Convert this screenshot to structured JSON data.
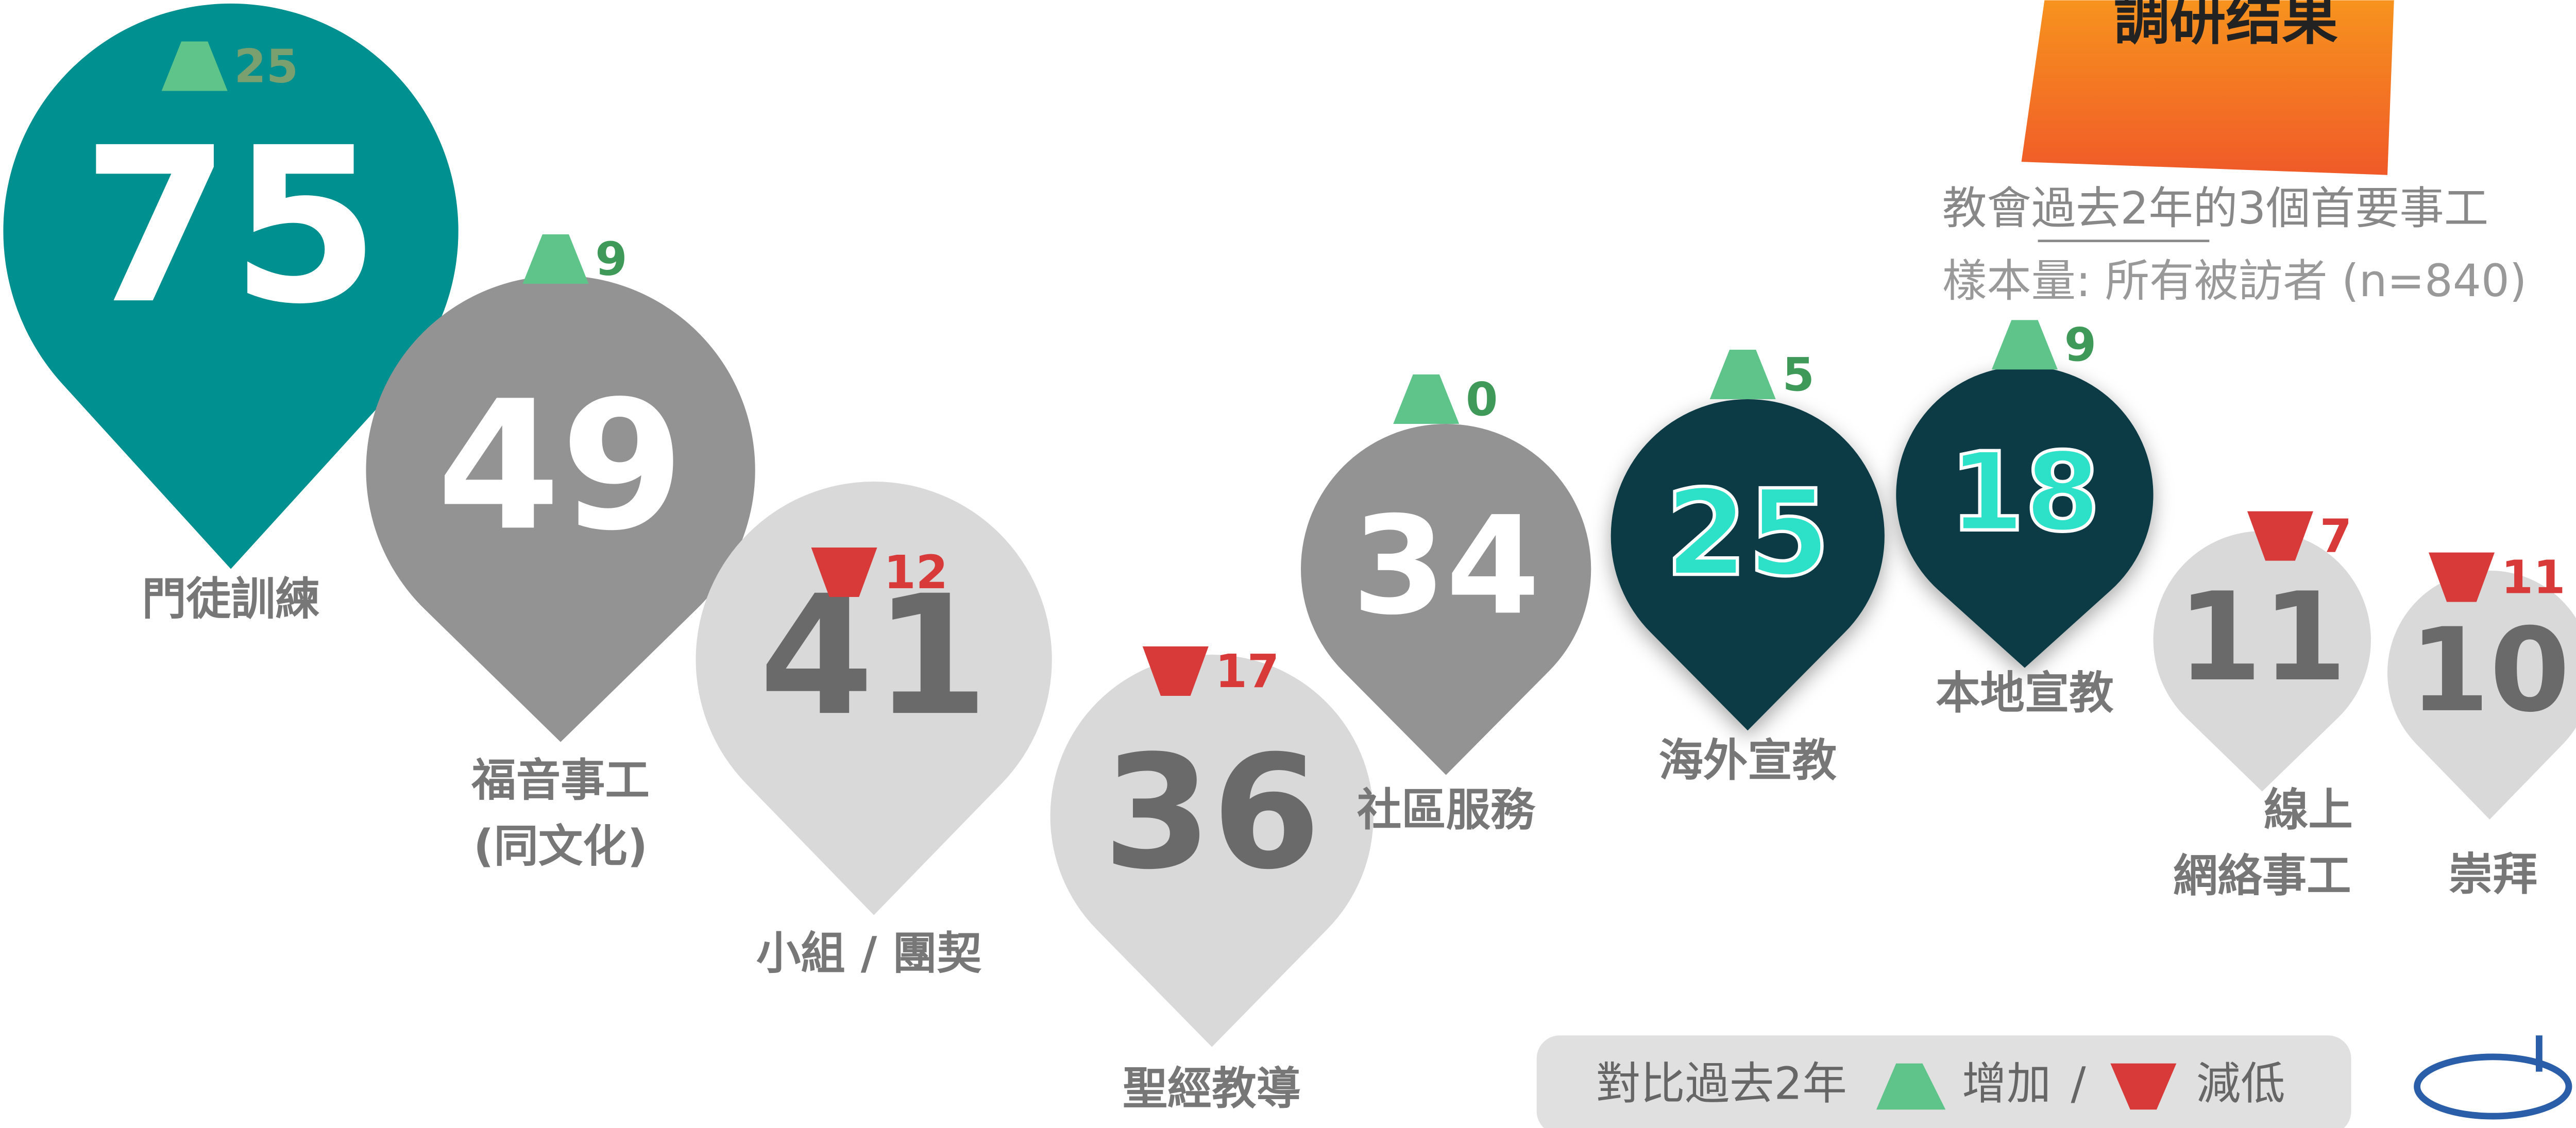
{
  "header": {
    "title": "調研结果",
    "subtitle": [
      "教會",
      "過去2年",
      "的3個首要事工"
    ],
    "sample": "樣本量: 所有被訪者 (n=840)"
  },
  "items": [
    {
      "label": [
        "門徒訓練"
      ],
      "value": 75,
      "change": 25,
      "direction": "up"
    },
    {
      "label": [
        "福音事工",
        "(同文化)"
      ],
      "value": 49,
      "change": 9,
      "direction": "up"
    },
    {
      "label": [
        "小組 / 團契"
      ],
      "value": 41,
      "change": 12,
      "direction": "down"
    },
    {
      "label": [
        "聖經教導"
      ],
      "value": 36,
      "change": 17,
      "direction": "down"
    },
    {
      "label": [
        "社區服務"
      ],
      "value": 34,
      "change": 0,
      "direction": "up"
    },
    {
      "label": [
        "海外宣教"
      ],
      "value": 25,
      "change": 5,
      "direction": "up"
    },
    {
      "label": [
        "本地宣教"
      ],
      "value": 18,
      "change": 9,
      "direction": "up"
    },
    {
      "label": [
        "線上",
        "網絡事工"
      ],
      "value": 11,
      "change": 7,
      "direction": "down"
    },
    {
      "label": [
        "崇拜"
      ],
      "value": 10,
      "change": 11,
      "direction": "down"
    }
  ],
  "legend": {
    "prefix": "對比過去2年",
    "up": "增加",
    "sep": "/",
    "down": "減低"
  }
}
